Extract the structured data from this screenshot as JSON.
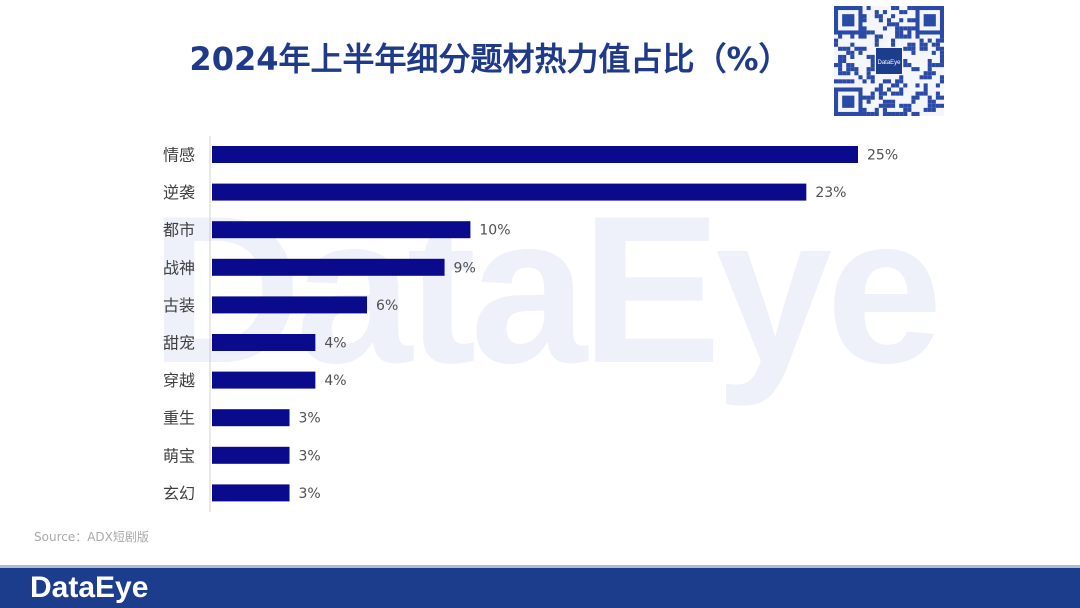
{
  "header": {
    "title": "2024年上半年细分题材热力值占比（%）",
    "qr_center_label": "DataEye"
  },
  "watermark": "DataEye",
  "footer": {
    "source": "Source：ADX短剧版",
    "brand": "DataEye"
  },
  "colors": {
    "bar": "#0a0a8c",
    "title": "#1f3a8a",
    "footer": "#1c3c8c"
  },
  "chart_data": {
    "type": "bar",
    "orientation": "horizontal",
    "title": "2024年上半年细分题材热力值占比（%）",
    "categories": [
      "情感",
      "逆袭",
      "都市",
      "战神",
      "古装",
      "甜宠",
      "穿越",
      "重生",
      "萌宝",
      "玄幻"
    ],
    "values": [
      25,
      23,
      10,
      9,
      6,
      4,
      4,
      3,
      3,
      3
    ],
    "data_labels": [
      "25%",
      "23%",
      "10%",
      "9%",
      "6%",
      "4%",
      "4%",
      "3%",
      "3%",
      "3%"
    ],
    "xlim": [
      0,
      25
    ],
    "grid": false,
    "legend": "none"
  }
}
